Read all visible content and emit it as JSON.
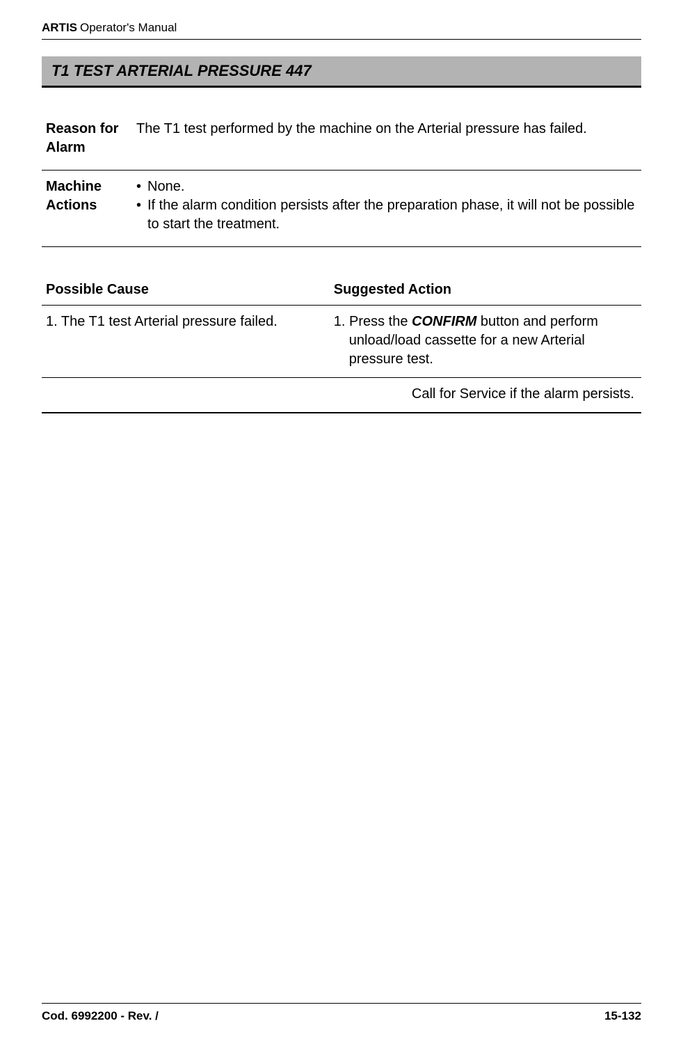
{
  "header": {
    "product": "ARTIS",
    "doc_title": "Operator's Manual"
  },
  "section": {
    "title": "T1 TEST ARTERIAL PRESSURE 447"
  },
  "info_rows": {
    "reason_label": "Reason for Alarm",
    "reason_text": "The T1 test performed by the machine on the Arterial pressure has failed.",
    "machine_label": "Machine Actions",
    "machine_bullet1": "None.",
    "machine_bullet2": "If the alarm condition persists after the preparation phase, it will not be possible to start the treatment."
  },
  "cause_action": {
    "header_cause": "Possible Cause",
    "header_action": "Suggested Action",
    "cause_1": "1. The T1 test Arterial pressure failed.",
    "action_1_pre": "1. Press the ",
    "action_1_emph": "CONFIRM",
    "action_1_post": " button and perform unload/load cassette for a new Arterial pressure test.",
    "service_text": "Call for Service if the alarm persists."
  },
  "footer": {
    "left": "Cod. 6992200 - Rev. /",
    "right": "15-132"
  },
  "colors": {
    "section_bg": "#b3b3b3",
    "text": "#000000",
    "page_bg": "#ffffff"
  },
  "typography": {
    "body_fontsize": 20,
    "header_fontsize": 17,
    "section_title_fontsize": 22
  }
}
